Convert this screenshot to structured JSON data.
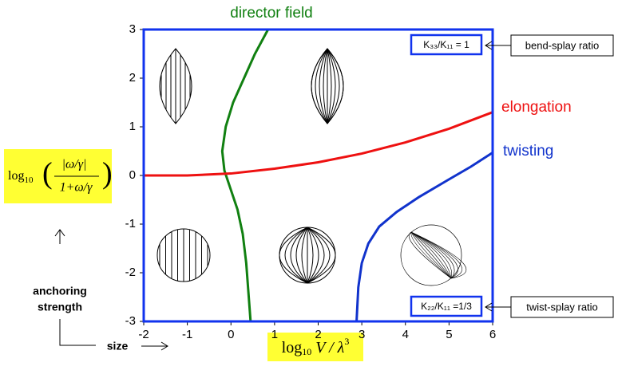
{
  "chart_data": {
    "type": "line",
    "xlim": [
      -2,
      6
    ],
    "ylim": [
      -3,
      3
    ],
    "xticks": [
      -2,
      -1,
      0,
      1,
      2,
      3,
      4,
      5,
      6
    ],
    "yticks": [
      -3,
      -2,
      -1,
      0,
      1,
      2,
      3
    ],
    "x_label": {
      "prefix": "log",
      "sub": "10",
      "main": " V / λ",
      "sup": "3"
    },
    "y_label": {
      "prefix": "log",
      "sub": "10",
      "numerator": "|ω/γ|",
      "denominator": "1+ω/γ"
    },
    "series": [
      {
        "name": "director field",
        "color": "#118011",
        "x": [
          0.85,
          0.55,
          0.3,
          0.05,
          -0.12,
          -0.2,
          -0.15,
          0.0,
          0.15,
          0.27,
          0.35,
          0.4,
          0.45
        ],
        "values": [
          3,
          2.5,
          2.0,
          1.5,
          1.0,
          0.5,
          0.1,
          -0.3,
          -0.7,
          -1.2,
          -1.8,
          -2.4,
          -3
        ]
      },
      {
        "name": "elongation",
        "color": "#ee1111",
        "x": [
          -2,
          -1,
          0,
          1,
          2,
          3,
          4,
          5,
          6
        ],
        "values": [
          0,
          0,
          0.04,
          0.14,
          0.27,
          0.45,
          0.68,
          0.96,
          1.3
        ]
      },
      {
        "name": "twisting",
        "color": "#1133cc",
        "x": [
          2.88,
          2.92,
          3.0,
          3.15,
          3.4,
          3.8,
          4.3,
          5.0,
          5.5,
          6
        ],
        "values": [
          -3,
          -2.3,
          -1.8,
          -1.4,
          -1.05,
          -0.75,
          -0.45,
          -0.08,
          0.18,
          0.47
        ]
      }
    ],
    "annotations": {
      "bend_ratio": "K₃₃/K₁₁ = 1",
      "bend_label": "bend-splay ratio",
      "twist_ratio": "K₂₂/K₁₁ =1/3",
      "twist_label": "twist-splay ratio",
      "anchoring": [
        "anchoring",
        "strength"
      ],
      "size": "size"
    }
  }
}
